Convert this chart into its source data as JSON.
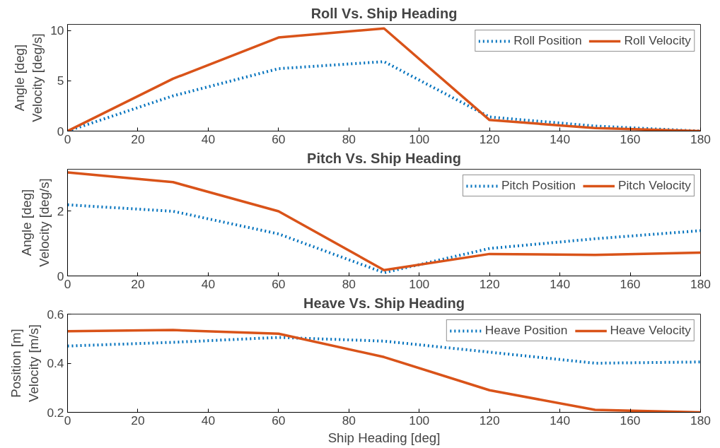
{
  "chart_data": [
    {
      "type": "line",
      "title": "Roll Vs. Ship Heading",
      "ylabel": "Angle [deg]\nVelocity [deg/s]",
      "x": [
        0,
        30,
        60,
        90,
        120,
        150,
        180
      ],
      "xlim": [
        0,
        180
      ],
      "xticks": [
        0,
        20,
        40,
        60,
        80,
        100,
        120,
        140,
        160,
        180
      ],
      "ylim": [
        0,
        10.6
      ],
      "yticks": [
        0,
        5,
        10
      ],
      "grid": false,
      "legend": "top right",
      "series": [
        {
          "name": "Roll Position",
          "color": "#0072bd",
          "line_style": "dotted",
          "values": [
            0,
            3.5,
            6.2,
            6.9,
            1.4,
            0.5,
            0
          ]
        },
        {
          "name": "Roll Velocity",
          "color": "#d95319",
          "line_style": "solid",
          "values": [
            0,
            5.2,
            9.3,
            10.2,
            1.1,
            0.3,
            0
          ]
        }
      ]
    },
    {
      "type": "line",
      "title": "Pitch Vs. Ship Heading",
      "ylabel": "Angle [deg]\nVelocity [deg/s]",
      "x": [
        0,
        30,
        60,
        90,
        120,
        150,
        180
      ],
      "xlim": [
        0,
        180
      ],
      "xticks": [
        0,
        20,
        40,
        60,
        80,
        100,
        120,
        140,
        160,
        180
      ],
      "ylim": [
        0,
        3.3
      ],
      "yticks": [
        0,
        2
      ],
      "grid": false,
      "legend": "top right",
      "series": [
        {
          "name": "Pitch Position",
          "color": "#0072bd",
          "line_style": "dotted",
          "values": [
            2.2,
            2.0,
            1.3,
            0.1,
            0.85,
            1.15,
            1.4
          ]
        },
        {
          "name": "Pitch Velocity",
          "color": "#d95319",
          "line_style": "solid",
          "values": [
            3.2,
            2.9,
            2.0,
            0.18,
            0.68,
            0.65,
            0.72
          ]
        }
      ]
    },
    {
      "type": "line",
      "title": "Heave Vs. Ship Heading",
      "xlabel": "Ship Heading [deg]",
      "ylabel": "Position [m]\nVelocity [m/s]",
      "x": [
        0,
        30,
        60,
        90,
        120,
        150,
        180
      ],
      "xlim": [
        0,
        180
      ],
      "xticks": [
        0,
        20,
        40,
        60,
        80,
        100,
        120,
        140,
        160,
        180
      ],
      "ylim": [
        0.2,
        0.6
      ],
      "yticks": [
        0.2,
        0.4,
        0.6
      ],
      "grid": false,
      "legend": "top right",
      "series": [
        {
          "name": "Heave Position",
          "color": "#0072bd",
          "line_style": "dotted",
          "values": [
            0.47,
            0.485,
            0.505,
            0.49,
            0.445,
            0.4,
            0.405
          ]
        },
        {
          "name": "Heave Velocity",
          "color": "#d95319",
          "line_style": "solid",
          "values": [
            0.53,
            0.535,
            0.52,
            0.425,
            0.29,
            0.21,
            0.2
          ]
        }
      ]
    }
  ]
}
